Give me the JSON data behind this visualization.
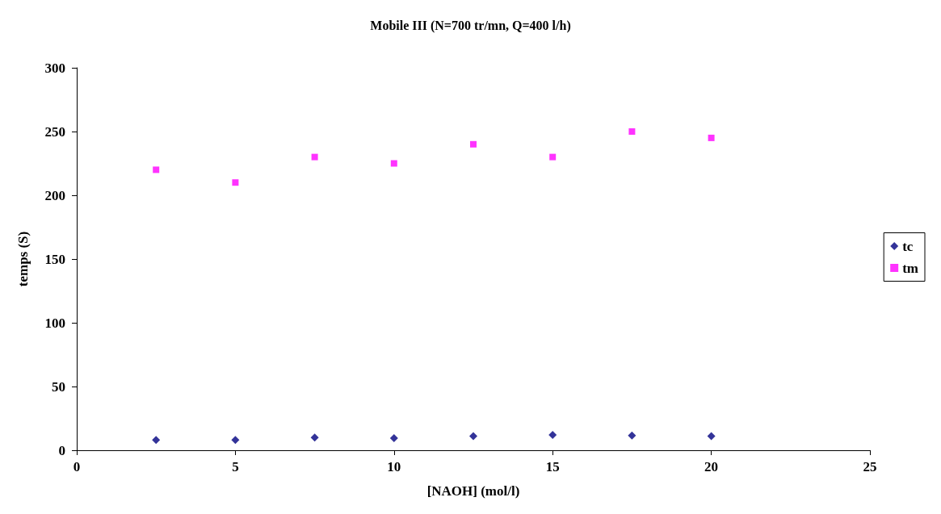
{
  "chart_data": {
    "type": "scatter",
    "title": "Mobile III (N=700 tr/mn, Q=400 l/h)",
    "xlabel": "[NAOH] (mol/l)",
    "ylabel": "temps (S)",
    "x": [
      2.5,
      5,
      7.5,
      10,
      12.5,
      15,
      17.5,
      20
    ],
    "series": [
      {
        "name": "tc",
        "color": "#000080",
        "marker": "diamond",
        "values": [
          8,
          8,
          10,
          9.5,
          11,
          12,
          11.5,
          11
        ]
      },
      {
        "name": "tm",
        "color": "#ff00ff",
        "marker": "square",
        "values": [
          220,
          210,
          230,
          225,
          240,
          230,
          250,
          245
        ]
      }
    ],
    "xlim": [
      0,
      25
    ],
    "xticks": [
      0,
      5,
      10,
      15,
      20,
      25
    ],
    "ylim": [
      0,
      300
    ],
    "yticks": [
      0,
      50,
      100,
      150,
      200,
      250,
      300
    ],
    "grid": false,
    "legend": "right"
  }
}
